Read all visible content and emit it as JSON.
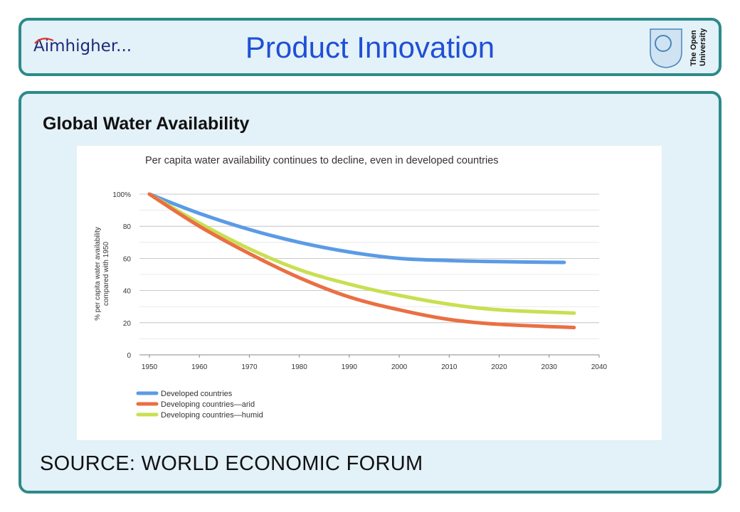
{
  "header": {
    "logo_text_lead": "A",
    "logo_text_rest": "imhigher...",
    "title": "Product Innovation",
    "ou_logo_line1": "The Open",
    "ou_logo_line2": "University"
  },
  "section_title": "Global Water Availability",
  "source": "SOURCE: WORLD ECONOMIC FORUM",
  "colors": {
    "panel_border": "#2d8a8a",
    "panel_fill": "#e3f1f8",
    "title_blue": "#1f4fd6",
    "developed": "#5b9be6",
    "arid": "#ea6f43",
    "humid": "#c9df52"
  },
  "chart_data": {
    "type": "line",
    "title": "Per capita water availability continues to decline, even in developed countries",
    "xlabel": "",
    "ylabel": "% per capita water availability compared with 1950",
    "xlim": [
      1950,
      2040
    ],
    "ylim": [
      0,
      100
    ],
    "xticks": [
      "1950",
      "1960",
      "1970",
      "1980",
      "1990",
      "2000",
      "2010",
      "2020",
      "2030",
      "2040"
    ],
    "yticks": [
      "0",
      "20",
      "40",
      "60",
      "80",
      "100%"
    ],
    "grid": true,
    "legend_position": "bottom-left",
    "series": [
      {
        "name": "Developed countries",
        "color": "#5b9be6",
        "x": [
          1950,
          1960,
          1970,
          1980,
          1990,
          2000,
          2010,
          2020,
          2033
        ],
        "y": [
          100,
          88,
          78,
          70,
          64,
          60,
          58.7,
          58,
          57.5
        ]
      },
      {
        "name": "Developing countries—arid",
        "color": "#ea6f43",
        "x": [
          1950,
          1960,
          1970,
          1980,
          1990,
          2000,
          2010,
          2020,
          2035
        ],
        "y": [
          100,
          80,
          63,
          48,
          36,
          28,
          22,
          19,
          17
        ]
      },
      {
        "name": "Developing countries—humid",
        "color": "#c9df52",
        "x": [
          1950,
          1960,
          1970,
          1980,
          1990,
          2000,
          2010,
          2020,
          2035
        ],
        "y": [
          100,
          82,
          66,
          53,
          44,
          37,
          31.5,
          28,
          26
        ]
      }
    ]
  }
}
